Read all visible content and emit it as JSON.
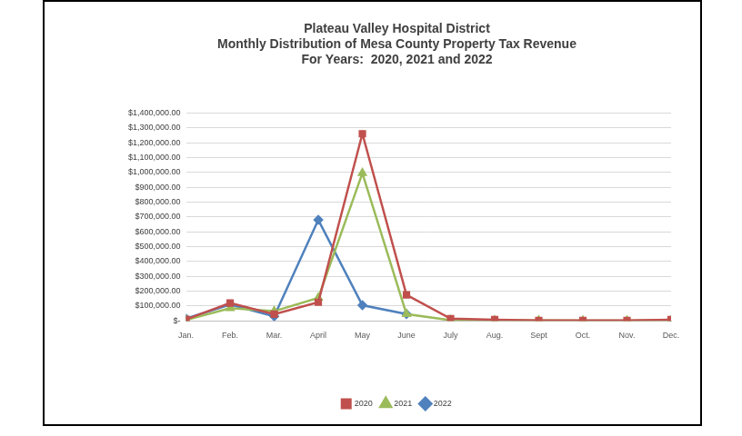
{
  "chart_data": {
    "type": "line",
    "title": [
      "Plateau Valley Hospital District",
      "Monthly Distribution of Mesa County Property Tax Revenue",
      "For Years:  2020, 2021 and 2022"
    ],
    "categories": [
      "Jan.",
      "Feb.",
      "Mar.",
      "April",
      "May",
      "June",
      "July",
      "Aug.",
      "Sept",
      "Oct.",
      "Nov.",
      "Dec."
    ],
    "series": [
      {
        "name": "2020",
        "color": "#c0504d",
        "marker": "square",
        "values": [
          10000,
          120000,
          45000,
          125000,
          1260000,
          175000,
          15000,
          8000,
          3000,
          2000,
          2000,
          8000
        ]
      },
      {
        "name": "2021",
        "color": "#9bbb59",
        "marker": "triangle",
        "values": [
          5000,
          85000,
          65000,
          155000,
          995000,
          45000,
          5000,
          3000,
          2000,
          1000,
          1000,
          3000
        ]
      },
      {
        "name": "2022",
        "color": "#4f81bd",
        "marker": "diamond",
        "values": [
          15000,
          110000,
          30000,
          680000,
          105000,
          45000,
          null,
          null,
          null,
          null,
          null,
          null
        ]
      }
    ],
    "ylim": [
      0,
      1400000
    ],
    "yticks": [
      {
        "value": 0,
        "label": "$-"
      },
      {
        "value": 100000,
        "label": "$100,000.00"
      },
      {
        "value": 200000,
        "label": "$200,000.00"
      },
      {
        "value": 300000,
        "label": "$300,000.00"
      },
      {
        "value": 400000,
        "label": "$400,000.00"
      },
      {
        "value": 500000,
        "label": "$500,000.00"
      },
      {
        "value": 600000,
        "label": "$600,000.00"
      },
      {
        "value": 700000,
        "label": "$700,000.00"
      },
      {
        "value": 800000,
        "label": "$800,000.00"
      },
      {
        "value": 900000,
        "label": "$900,000.00"
      },
      {
        "value": 1000000,
        "label": "$1,000,000.00"
      },
      {
        "value": 1100000,
        "label": "$1,100,000.00"
      },
      {
        "value": 1200000,
        "label": "$1,200,000.00"
      },
      {
        "value": 1300000,
        "label": "$1,300,000.00"
      },
      {
        "value": 1400000,
        "label": "$1,400,000.00"
      }
    ],
    "grid": true,
    "legend": "bottom"
  }
}
